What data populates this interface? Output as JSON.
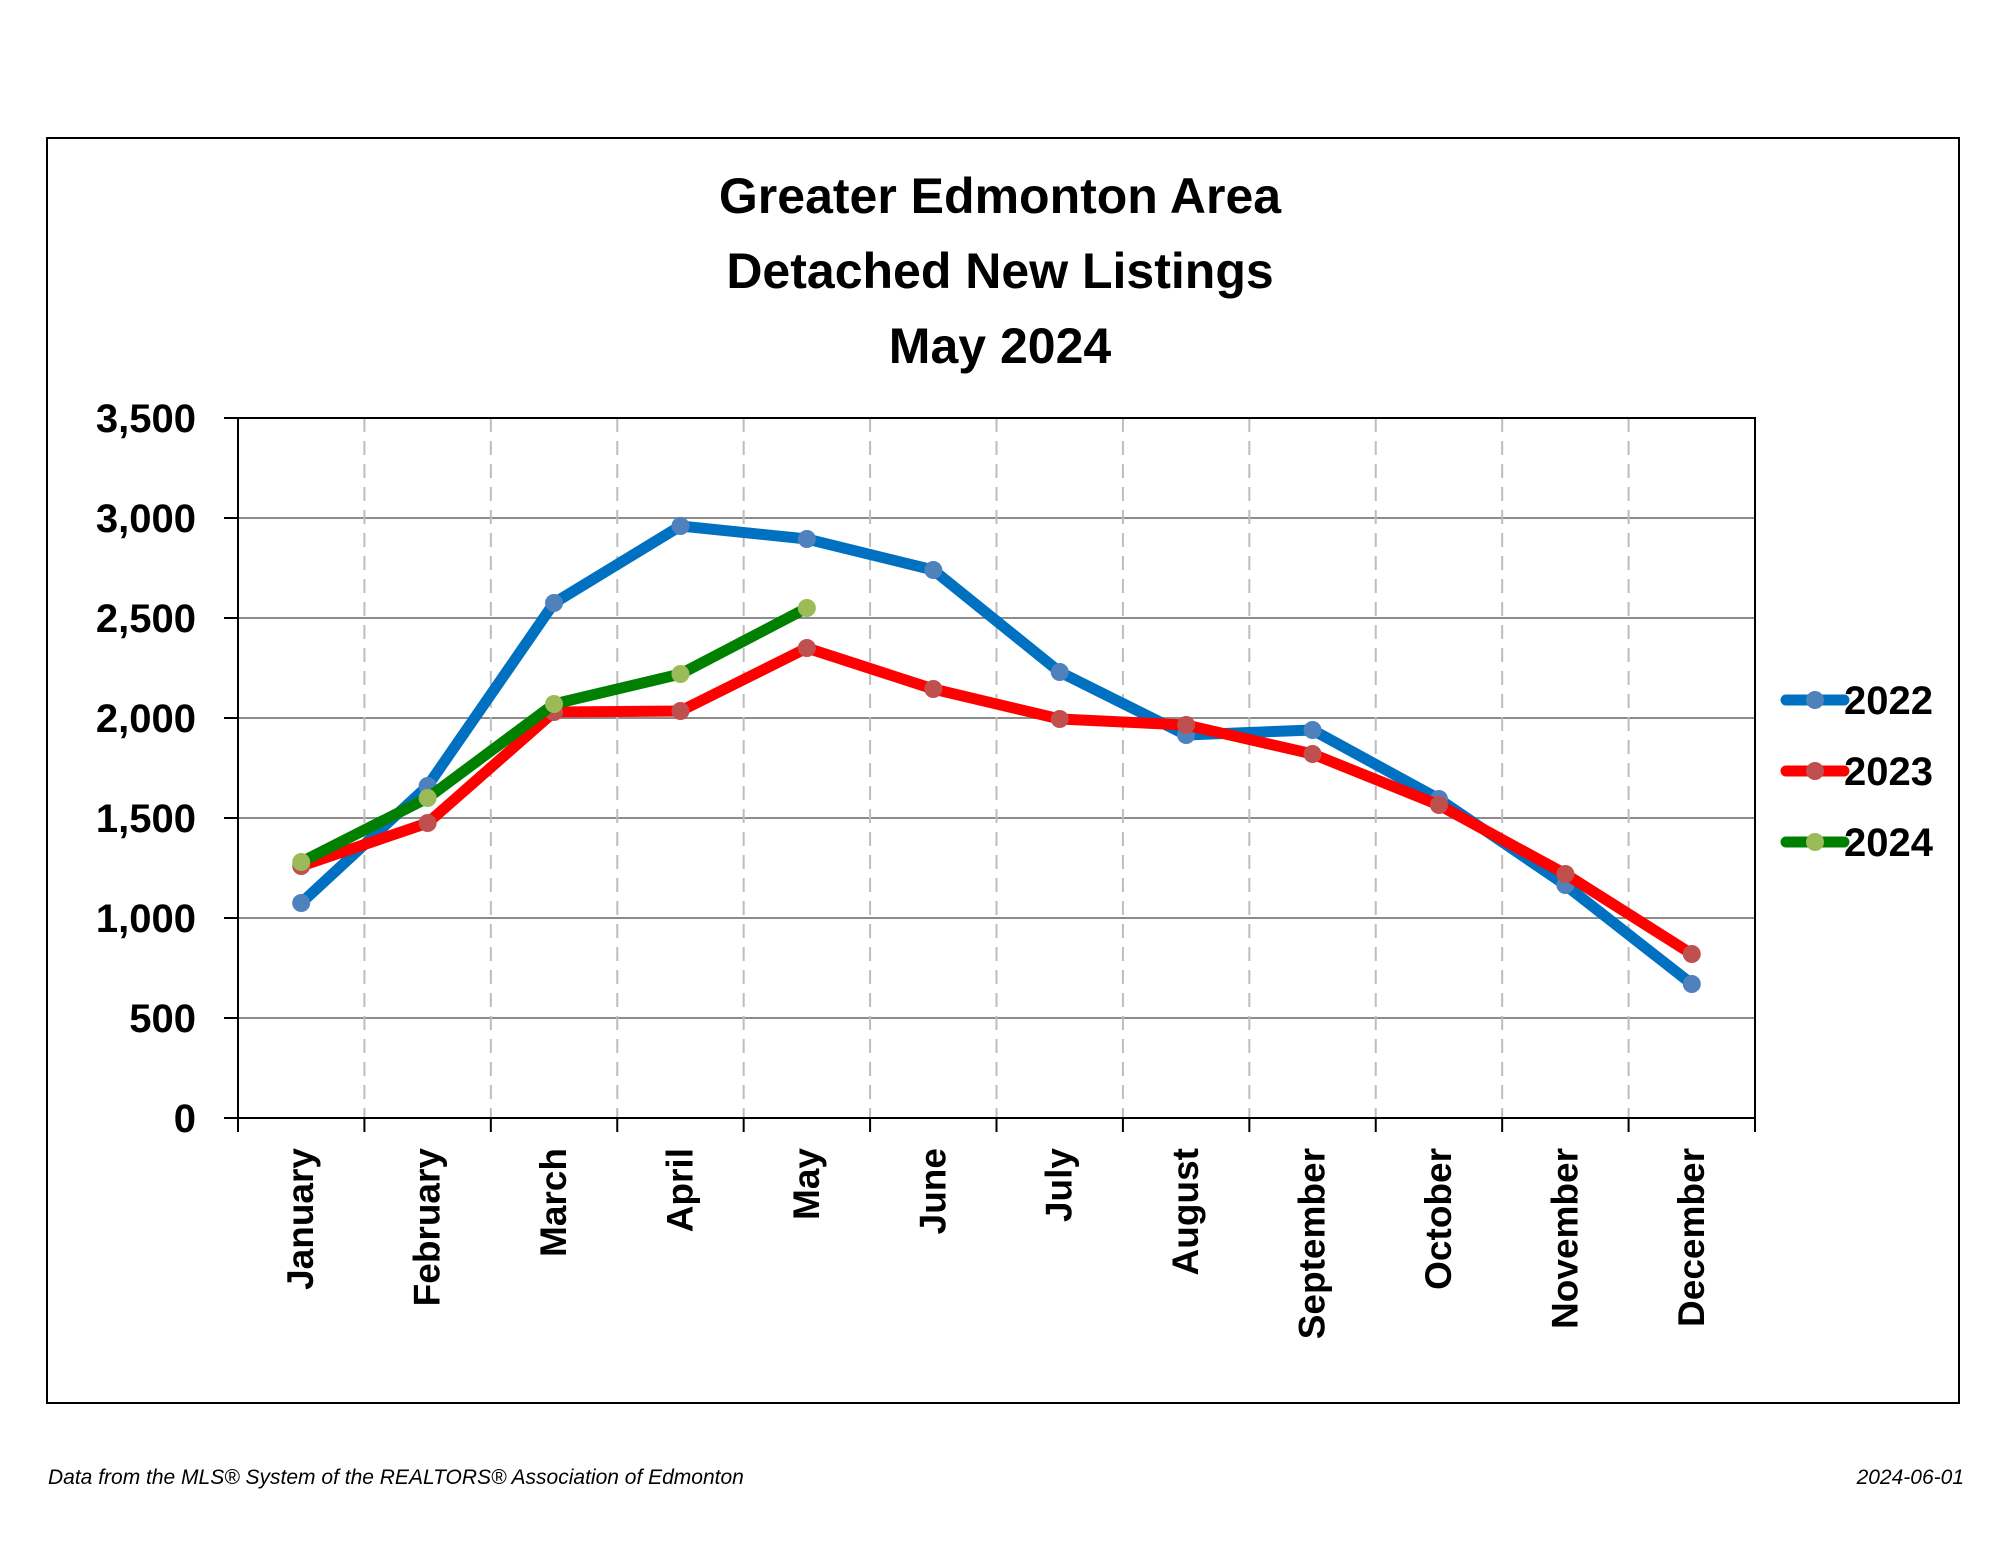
{
  "chart_data": {
    "type": "line",
    "title_lines": [
      "Greater Edmonton Area",
      "Detached New Listings",
      "May 2024"
    ],
    "categories": [
      "January",
      "February",
      "March",
      "April",
      "May",
      "June",
      "July",
      "August",
      "September",
      "October",
      "November",
      "December"
    ],
    "ylim": [
      0,
      3500
    ],
    "yticks": [
      0,
      500,
      1000,
      1500,
      2000,
      2500,
      3000,
      3500
    ],
    "ytick_labels": [
      "0",
      "500",
      "1,000",
      "1,500",
      "2,000",
      "2,500",
      "3,000",
      "3,500"
    ],
    "grid": {
      "horizontal": true,
      "vertical": "dashed"
    },
    "legend_position": "right",
    "series": [
      {
        "name": "2022",
        "line_color": "#0070C0",
        "marker_color": "#4F81BD",
        "values": [
          1075,
          1660,
          2575,
          2960,
          2895,
          2740,
          2230,
          1915,
          1940,
          1595,
          1165,
          670
        ]
      },
      {
        "name": "2023",
        "line_color": "#FF0000",
        "marker_color": "#C0504D",
        "values": [
          1260,
          1475,
          2030,
          2035,
          2350,
          2145,
          1995,
          1965,
          1820,
          1565,
          1220,
          820
        ]
      },
      {
        "name": "2024",
        "line_color": "#008000",
        "marker_color": "#9BBB59",
        "values": [
          1280,
          1600,
          2070,
          2220,
          2550,
          null,
          null,
          null,
          null,
          null,
          null,
          null
        ]
      }
    ]
  },
  "footer": {
    "source": "Data from the MLS® System of the REALTORS® Association of Edmonton",
    "date": "2024-06-01"
  }
}
